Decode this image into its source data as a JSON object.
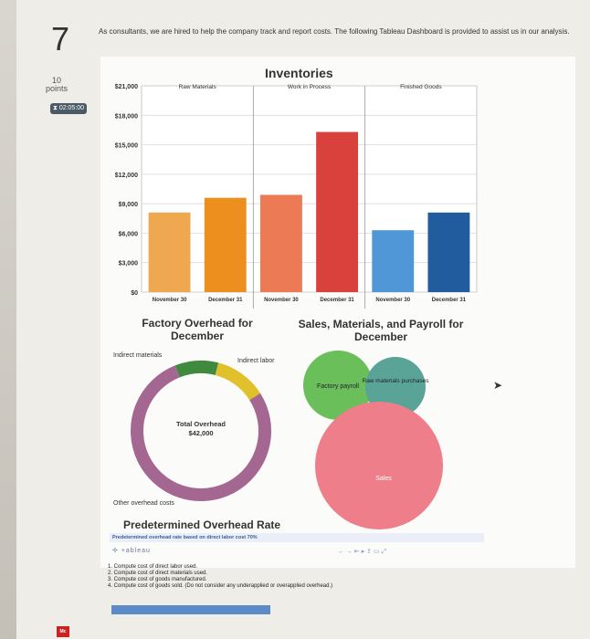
{
  "question": {
    "number": "7",
    "points_value": "10",
    "points_label": "points",
    "timer": "02:05:00",
    "intro_text": "As consultants, we are hired to help the company track and report costs. The following Tableau Dashboard is provided to assist us in our analysis."
  },
  "chart_data": [
    {
      "type": "bar",
      "title": "Inventories",
      "panels": [
        "Raw Materials",
        "Work in Process",
        "Finished Goods"
      ],
      "categories": [
        "November 30",
        "December 31",
        "November 30",
        "December 31",
        "November 30",
        "December 31"
      ],
      "values": [
        8100,
        9600,
        9900,
        16300,
        6300,
        8100
      ],
      "colors": [
        "#f0a850",
        "#ed8f1e",
        "#ec7a55",
        "#d9413d",
        "#4f97d6",
        "#215d9e"
      ],
      "y_ticks": [
        "$0",
        "$3,000",
        "$6,000",
        "$9,000",
        "$12,000",
        "$15,000",
        "$18,000",
        "$21,000"
      ],
      "ylim": [
        0,
        21000
      ],
      "grid": true
    },
    {
      "type": "pie",
      "title": "Factory Overhead for December",
      "center_label": "Total Overhead",
      "center_value": "$42,000",
      "labels": [
        "Indirect materials",
        "Indirect labor",
        "Other overhead costs"
      ],
      "values": [
        0.1,
        0.12,
        0.78
      ],
      "colors": [
        "#3f8a3f",
        "#e1c12b",
        "#a46792"
      ]
    },
    {
      "type": "scatter",
      "title": "Sales, Materials, and Payroll for December",
      "labels": [
        "Factory payroll",
        "Raw materials purchases",
        "Sales"
      ],
      "colors": [
        "#6abf5a",
        "#5aa497",
        "#ee7f8a"
      ]
    }
  ],
  "predetermined": {
    "title": "Predetermined Overhead Rate",
    "label": "Predetermined overhead rate based on direct labor cost",
    "value": "70%"
  },
  "tableau_logo": "+ableau",
  "tasks": [
    "1. Compute cost of direct labor used.",
    "2. Compute cost of direct materials used.",
    "3. Compute cost of goods manufactured.",
    "4. Compute cost of goods sold. (Do not consider any underapplied or overapplied overhead.)"
  ],
  "mc_logo": "Mc"
}
